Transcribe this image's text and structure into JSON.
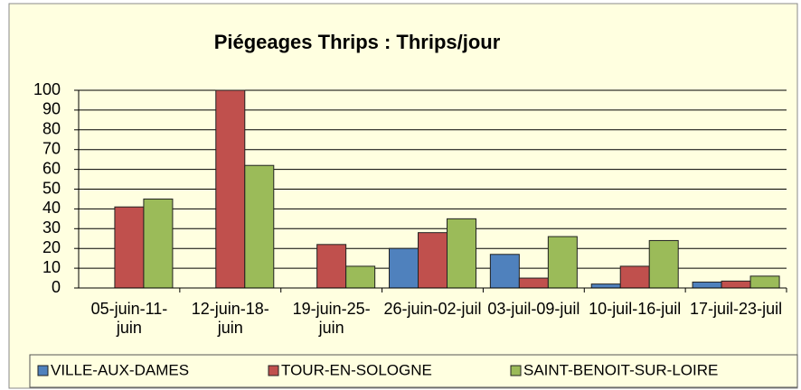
{
  "chart_data": {
    "type": "bar",
    "title": "Piégeages Thrips : Thrips/jour",
    "categories": [
      "05-juin-11-juin",
      "12-juin-18-juin",
      "19-juin-25-juin",
      "26-juin-02-juil",
      "03-juil-09-juil",
      "10-juil-16-juil",
      "17-juil-23-juil"
    ],
    "series": [
      {
        "name": "VILLE-AUX-DAMES",
        "color": "#4f81bd",
        "values": [
          0,
          0,
          0,
          20,
          17,
          2,
          3
        ]
      },
      {
        "name": "TOUR-EN-SOLOGNE",
        "color": "#c0504d",
        "values": [
          41,
          100,
          22,
          28,
          5,
          11,
          3.5
        ]
      },
      {
        "name": "SAINT-BENOIT-SUR-LOIRE",
        "color": "#9bbb59",
        "values": [
          45,
          62,
          11,
          35,
          26,
          24,
          6
        ]
      }
    ],
    "ylim": [
      0,
      100
    ],
    "yticks": [
      0,
      10,
      20,
      30,
      40,
      50,
      60,
      70,
      80,
      90,
      100
    ],
    "grid": true,
    "legend": "bottom"
  }
}
